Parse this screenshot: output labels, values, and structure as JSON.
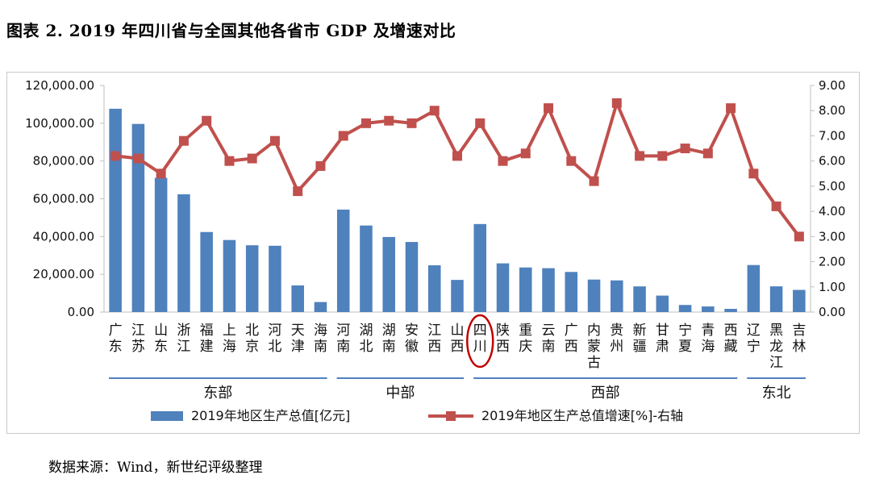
{
  "title": "图表 2. 2019 年四川省与全国其他各省市 GDP 及增速对比",
  "source": "数据来源：Wind，新世纪评级整理",
  "colors": {
    "bar": "#4f81bd",
    "line": "#c0504d",
    "region_line": "#4f81bd",
    "highlight": "#c00000",
    "axis": "#bfbfbf"
  },
  "chart_data": {
    "type": "bar+line",
    "categories": [
      "广东",
      "江苏",
      "山东",
      "浙江",
      "福建",
      "上海",
      "北京",
      "河北",
      "天津",
      "海南",
      "河南",
      "湖北",
      "湖南",
      "安徽",
      "江西",
      "山西",
      "四川",
      "陕西",
      "重庆",
      "云南",
      "广西",
      "内蒙古",
      "贵州",
      "新疆",
      "甘肃",
      "宁夏",
      "青海",
      "西藏",
      "辽宁",
      "黑龙江",
      "吉林"
    ],
    "series": [
      {
        "name": "2019年地区生产总值[亿元]",
        "type": "bar",
        "axis": "left",
        "values": [
          107671,
          99632,
          71068,
          62352,
          42395,
          38155,
          35371,
          35105,
          14104,
          5309,
          54259,
          45828,
          39752,
          37114,
          24758,
          17027,
          46616,
          25793,
          23606,
          23224,
          21237,
          17213,
          16769,
          13597,
          8718,
          3748,
          2966,
          1698,
          24909,
          13613,
          11727
        ]
      },
      {
        "name": "2019年地区生产总值增速[%]-右轴",
        "type": "line",
        "axis": "right",
        "values": [
          6.2,
          6.1,
          5.5,
          6.8,
          7.6,
          6.0,
          6.1,
          6.8,
          4.8,
          5.8,
          7.0,
          7.5,
          7.6,
          7.5,
          8.0,
          6.2,
          7.5,
          6.0,
          6.3,
          8.1,
          6.0,
          5.2,
          8.3,
          6.2,
          6.2,
          6.5,
          6.3,
          8.1,
          5.5,
          4.2,
          3.0
        ]
      }
    ],
    "left_axis": {
      "min": 0,
      "max": 120000,
      "step": 20000,
      "tick_labels": [
        "0.00",
        "20,000.00",
        "40,000.00",
        "60,000.00",
        "80,000.00",
        "100,000.00",
        "120,000.00"
      ]
    },
    "right_axis": {
      "min": 0,
      "max": 9,
      "step": 1,
      "tick_labels": [
        "0.00",
        "1.00",
        "2.00",
        "3.00",
        "4.00",
        "5.00",
        "6.00",
        "7.00",
        "8.00",
        "9.00"
      ]
    },
    "highlight_category": "四川",
    "regions": [
      {
        "name": "东部",
        "from": "广东",
        "to": "海南"
      },
      {
        "name": "中部",
        "from": "河南",
        "to": "山西"
      },
      {
        "name": "西部",
        "from": "四川",
        "to": "西藏"
      },
      {
        "name": "东北",
        "from": "辽宁",
        "to": "吉林"
      }
    ],
    "grid": false,
    "legend": "bottom"
  }
}
